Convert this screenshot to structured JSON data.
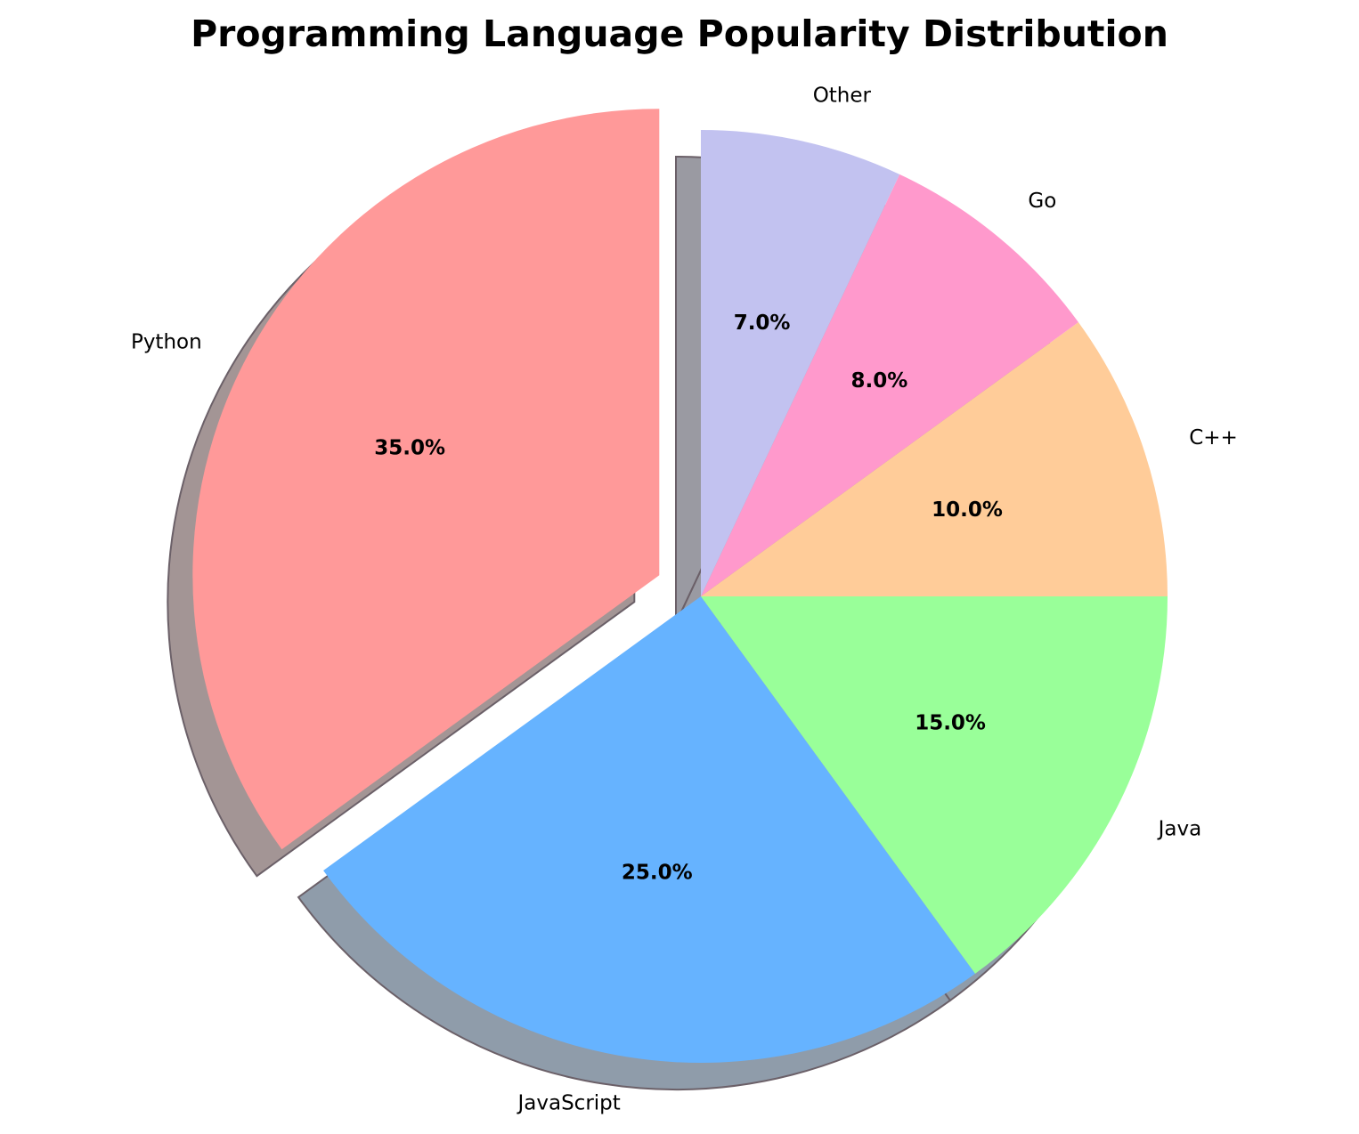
{
  "chart_data": {
    "type": "pie",
    "title": "Programming Language Popularity Distribution",
    "categories": [
      "Python",
      "JavaScript",
      "Java",
      "C++",
      "Go",
      "Other"
    ],
    "values": [
      35.0,
      25.0,
      15.0,
      10.0,
      8.0,
      7.0
    ],
    "percent_labels": [
      "35.0%",
      "25.0%",
      "15.0%",
      "10.0%",
      "8.0%",
      "7.0%"
    ],
    "colors": [
      "#FF9999",
      "#66B3FF",
      "#99FF99",
      "#FFCC99",
      "#FF99CC",
      "#C2C2F0"
    ],
    "start_angle_deg": 90,
    "direction": "counterclockwise",
    "explode": [
      0.1,
      0,
      0,
      0,
      0,
      0
    ],
    "shadow": true
  }
}
